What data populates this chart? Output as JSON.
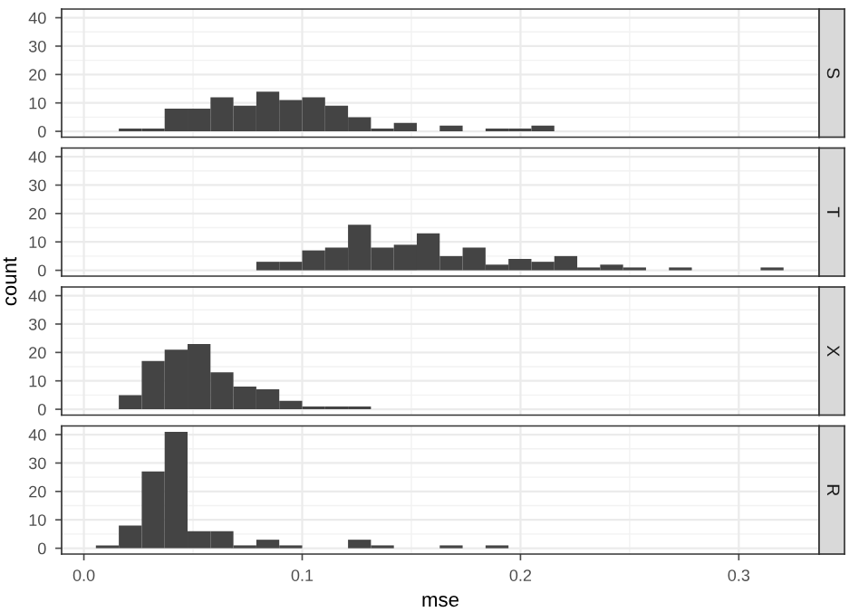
{
  "chart_data": [
    {
      "type": "histogram",
      "title": "S",
      "bins": [
        0.0055,
        0.016,
        0.0265,
        0.037,
        0.0475,
        0.058,
        0.0685,
        0.079,
        0.0895,
        0.1,
        0.1105,
        0.121,
        0.1315,
        0.142,
        0.1525,
        0.163,
        0.1735,
        0.184,
        0.1945,
        0.205,
        0.2155,
        0.226,
        0.2365,
        0.247,
        0.2575,
        0.268,
        0.2785,
        0.289,
        0.2995,
        0.31,
        0.3205
      ],
      "values": [
        0,
        1,
        1,
        8,
        8,
        12,
        9,
        14,
        11,
        12,
        9,
        5,
        1,
        3,
        0,
        2,
        0,
        1,
        1,
        2,
        0,
        0,
        0,
        0,
        0,
        0,
        0,
        0,
        0,
        0
      ],
      "color": "#444444",
      "xlim": [
        -0.0102,
        0.3368
      ],
      "xticks": [
        0.0,
        0.1,
        0.2,
        0.3
      ],
      "ylim": [
        -2.05,
        43.05
      ],
      "yticks": [
        0,
        10,
        20,
        30,
        40
      ],
      "grid": true,
      "tick_labels": "y"
    },
    {
      "type": "histogram",
      "title": "T",
      "ylabel": "count",
      "bins": [
        0.0055,
        0.016,
        0.0265,
        0.037,
        0.0475,
        0.058,
        0.0685,
        0.079,
        0.0895,
        0.1,
        0.1105,
        0.121,
        0.1315,
        0.142,
        0.1525,
        0.163,
        0.1735,
        0.184,
        0.1945,
        0.205,
        0.2155,
        0.226,
        0.2365,
        0.247,
        0.2575,
        0.268,
        0.2785,
        0.289,
        0.2995,
        0.31,
        0.3205
      ],
      "values": [
        0,
        0,
        0,
        0,
        0,
        0,
        0,
        3,
        3,
        7,
        8,
        16,
        8,
        9,
        13,
        5,
        8,
        2,
        4,
        3,
        5,
        1,
        2,
        1,
        0,
        1,
        0,
        0,
        0,
        1
      ],
      "color": "#444444",
      "xlim": [
        -0.0102,
        0.3368
      ],
      "xticks": [
        0.0,
        0.1,
        0.2,
        0.3
      ],
      "ylim": [
        -2.05,
        43.05
      ],
      "yticks": [
        0,
        10,
        20,
        30,
        40
      ],
      "grid": true,
      "tick_labels": "y"
    },
    {
      "type": "histogram",
      "title": "X",
      "bins": [
        0.0055,
        0.016,
        0.0265,
        0.037,
        0.0475,
        0.058,
        0.0685,
        0.079,
        0.0895,
        0.1,
        0.1105,
        0.121,
        0.1315,
        0.142,
        0.1525,
        0.163,
        0.1735,
        0.184,
        0.1945,
        0.205,
        0.2155,
        0.226,
        0.2365,
        0.247,
        0.2575,
        0.268,
        0.2785,
        0.289,
        0.2995,
        0.31,
        0.3205
      ],
      "values": [
        0,
        5,
        17,
        21,
        23,
        13,
        8,
        7,
        3,
        1,
        1,
        1,
        0,
        0,
        0,
        0,
        0,
        0,
        0,
        0,
        0,
        0,
        0,
        0,
        0,
        0,
        0,
        0,
        0,
        0
      ],
      "color": "#444444",
      "xlim": [
        -0.0102,
        0.3368
      ],
      "xticks": [
        0.0,
        0.1,
        0.2,
        0.3
      ],
      "ylim": [
        -2.05,
        43.05
      ],
      "yticks": [
        0,
        10,
        20,
        30,
        40
      ],
      "grid": true,
      "tick_labels": "y"
    },
    {
      "type": "histogram",
      "title": "R",
      "xlabel": "mse",
      "bins": [
        0.0055,
        0.016,
        0.0265,
        0.037,
        0.0475,
        0.058,
        0.0685,
        0.079,
        0.0895,
        0.1,
        0.1105,
        0.121,
        0.1315,
        0.142,
        0.1525,
        0.163,
        0.1735,
        0.184,
        0.1945,
        0.205,
        0.2155,
        0.226,
        0.2365,
        0.247,
        0.2575,
        0.268,
        0.2785,
        0.289,
        0.2995,
        0.31,
        0.3205
      ],
      "values": [
        1,
        8,
        27,
        41,
        6,
        6,
        1,
        3,
        1,
        0,
        0,
        3,
        1,
        0,
        0,
        1,
        0,
        1,
        0,
        0,
        0,
        0,
        0,
        0,
        0,
        0,
        0,
        0,
        0,
        0
      ],
      "color": "#444444",
      "xlim": [
        -0.0102,
        0.3368
      ],
      "xticks": [
        {
          "value": 0.0,
          "label": "0.0"
        },
        0.1,
        0.2,
        0.3
      ],
      "ylim": [
        -2.05,
        43.05
      ],
      "yticks": [
        0,
        10,
        20,
        30,
        40
      ],
      "grid": true
    }
  ]
}
